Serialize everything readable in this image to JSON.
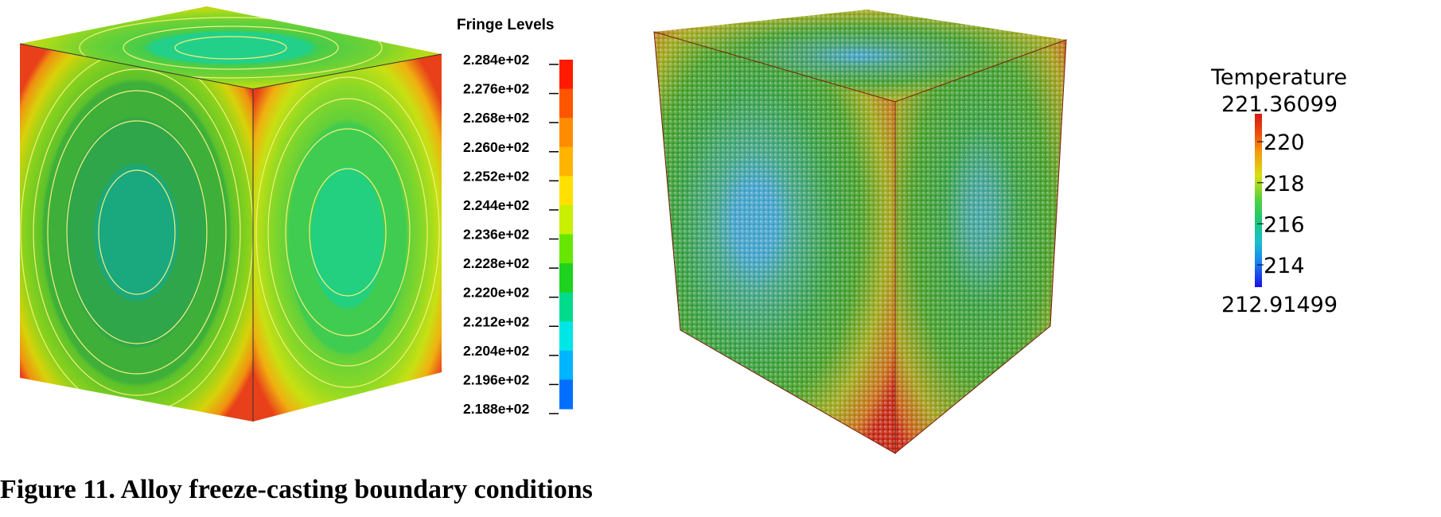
{
  "left_figure": {
    "legend_title": "Fringe Levels",
    "levels": [
      "2.284e+02",
      "2.276e+02",
      "2.268e+02",
      "2.260e+02",
      "2.252e+02",
      "2.244e+02",
      "2.236e+02",
      "2.228e+02",
      "2.220e+02",
      "2.212e+02",
      "2.204e+02",
      "2.196e+02",
      "2.188e+02"
    ],
    "bar_colors": [
      "#ff1a00",
      "#ff5500",
      "#ff8c00",
      "#ffb400",
      "#ffe000",
      "#c8f000",
      "#66e600",
      "#1ed21e",
      "#00dc8c",
      "#00e6e6",
      "#00b4ff",
      "#006eff",
      "#0014ff"
    ]
  },
  "right_figure": {
    "legend_title": "Temperature",
    "max_label": "221.36099",
    "min_label": "212.91499",
    "tick_labels": [
      "220",
      "218",
      "216",
      "214"
    ]
  },
  "caption": "Figure 11.  Alloy freeze-casting boundary conditions"
}
